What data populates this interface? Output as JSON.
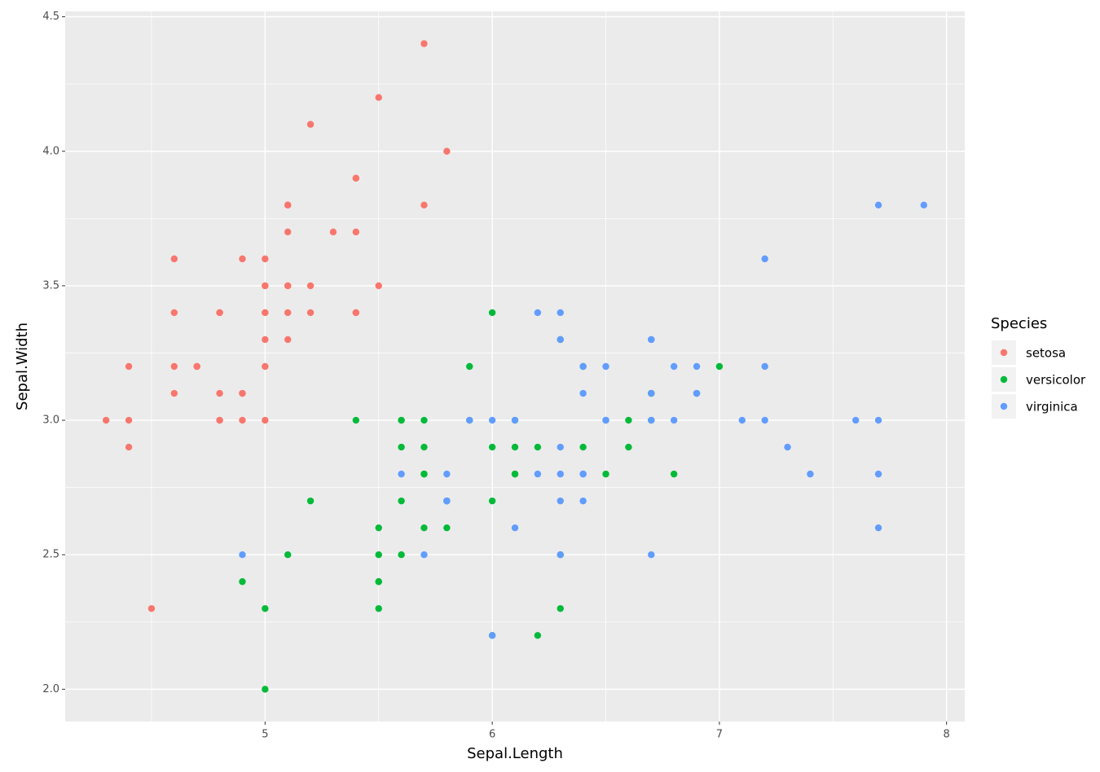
{
  "chart_data": {
    "type": "scatter",
    "x_label": "Sepal.Length",
    "y_label": "Sepal.Width",
    "legend_title": "Species",
    "xlim": [
      4.12,
      8.08
    ],
    "ylim": [
      1.88,
      4.52
    ],
    "xticks": [
      5,
      6,
      7,
      8
    ],
    "yticks": [
      {
        "value": 2.0,
        "label": "2.0"
      },
      {
        "value": 2.5,
        "label": "2.5"
      },
      {
        "value": 3.0,
        "label": "3.0"
      },
      {
        "value": 3.5,
        "label": "3.5"
      },
      {
        "value": 4.0,
        "label": "4.0"
      },
      {
        "value": 4.5,
        "label": "4.5"
      }
    ],
    "grid": true,
    "legend_position": "right",
    "background": "#ebebeb",
    "series": [
      {
        "name": "setosa",
        "color": "#F8766D",
        "x": [
          5.1,
          4.9,
          4.7,
          4.6,
          5.0,
          5.4,
          4.6,
          5.0,
          4.4,
          4.9,
          5.4,
          4.8,
          4.8,
          4.3,
          5.8,
          5.7,
          5.4,
          5.1,
          5.7,
          5.1,
          5.4,
          5.1,
          4.6,
          5.1,
          4.8,
          5.0,
          5.0,
          5.2,
          5.2,
          4.7,
          4.8,
          5.4,
          5.2,
          5.5,
          4.9,
          5.0,
          5.5,
          4.9,
          4.4,
          5.1,
          5.0,
          4.5,
          4.4,
          5.0,
          5.1,
          4.8,
          5.1,
          4.6,
          5.3,
          5.0
        ],
        "values": [
          3.5,
          3.0,
          3.2,
          3.1,
          3.6,
          3.9,
          3.4,
          3.4,
          2.9,
          3.1,
          3.7,
          3.4,
          3.0,
          3.0,
          4.0,
          4.4,
          3.9,
          3.5,
          3.8,
          3.8,
          3.4,
          3.7,
          3.6,
          3.3,
          3.4,
          3.0,
          3.4,
          3.5,
          3.4,
          3.2,
          3.1,
          3.4,
          4.1,
          4.2,
          3.1,
          3.2,
          3.5,
          3.6,
          3.0,
          3.4,
          3.5,
          2.3,
          3.2,
          3.5,
          3.8,
          3.0,
          3.8,
          3.2,
          3.7,
          3.3
        ]
      },
      {
        "name": "versicolor",
        "color": "#00BA38",
        "x": [
          7.0,
          6.4,
          6.9,
          5.5,
          6.5,
          5.7,
          6.3,
          4.9,
          6.6,
          5.2,
          5.0,
          5.9,
          6.0,
          6.1,
          5.6,
          6.7,
          5.6,
          5.8,
          6.2,
          5.6,
          5.9,
          6.1,
          6.3,
          6.1,
          6.4,
          6.6,
          6.8,
          6.7,
          6.0,
          5.7,
          5.5,
          5.5,
          5.8,
          6.0,
          5.4,
          6.0,
          6.7,
          6.3,
          5.6,
          5.5,
          5.5,
          6.1,
          5.8,
          5.0,
          5.6,
          5.7,
          5.7,
          6.2,
          5.1,
          5.7
        ],
        "values": [
          3.2,
          3.2,
          3.1,
          2.3,
          2.8,
          2.8,
          3.3,
          2.4,
          2.9,
          2.7,
          2.0,
          3.0,
          2.2,
          2.9,
          2.9,
          3.1,
          3.0,
          2.7,
          2.2,
          2.5,
          3.2,
          2.8,
          2.5,
          2.8,
          2.9,
          3.0,
          2.8,
          3.0,
          2.9,
          2.6,
          2.4,
          2.4,
          2.7,
          2.7,
          3.0,
          3.4,
          3.1,
          2.3,
          3.0,
          2.5,
          2.6,
          3.0,
          2.6,
          2.3,
          2.7,
          3.0,
          2.9,
          2.9,
          2.5,
          2.8
        ]
      },
      {
        "name": "virginica",
        "color": "#619CFF",
        "x": [
          6.3,
          5.8,
          7.1,
          6.3,
          6.5,
          7.6,
          4.9,
          7.3,
          6.7,
          7.2,
          6.5,
          6.4,
          6.8,
          5.7,
          5.8,
          6.4,
          6.5,
          7.7,
          7.7,
          6.0,
          6.9,
          5.6,
          7.7,
          6.3,
          6.7,
          7.2,
          6.2,
          6.1,
          6.4,
          7.2,
          7.4,
          7.9,
          6.4,
          6.3,
          6.1,
          7.7,
          6.3,
          6.4,
          6.0,
          6.9,
          6.7,
          6.9,
          5.8,
          6.8,
          6.7,
          6.7,
          6.3,
          6.5,
          6.2,
          5.9
        ],
        "values": [
          3.3,
          2.7,
          3.0,
          2.9,
          3.0,
          3.0,
          2.5,
          2.9,
          2.5,
          3.6,
          3.2,
          2.7,
          3.0,
          2.5,
          2.8,
          3.2,
          3.0,
          3.8,
          2.6,
          2.2,
          3.2,
          2.8,
          2.8,
          2.7,
          3.3,
          3.2,
          2.8,
          3.0,
          2.8,
          3.0,
          2.8,
          3.8,
          2.8,
          2.8,
          2.6,
          3.0,
          3.4,
          3.1,
          3.0,
          3.1,
          3.1,
          3.1,
          2.7,
          3.2,
          3.3,
          3.0,
          2.5,
          3.0,
          3.4,
          3.0
        ]
      }
    ]
  }
}
